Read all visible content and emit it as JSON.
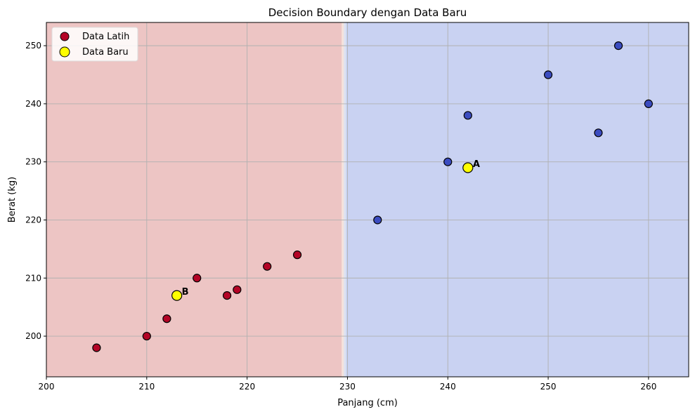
{
  "chart_data": {
    "type": "scatter",
    "title": "Decision Boundary dengan Data Baru",
    "xlabel": "Panjang (cm)",
    "ylabel": "Berat (kg)",
    "xlim": [
      200,
      264
    ],
    "ylim": [
      193,
      254
    ],
    "xticks": [
      200,
      210,
      220,
      230,
      240,
      250,
      260
    ],
    "yticks": [
      200,
      210,
      220,
      230,
      240,
      250
    ],
    "grid": true,
    "legend_position": "top-left",
    "decision_boundary_x": 229.7,
    "regions": [
      {
        "class": "red",
        "x_range": [
          200,
          229.7
        ],
        "color": "#edc5c4"
      },
      {
        "class": "blue",
        "x_range": [
          229.7,
          264
        ],
        "color": "#c9d2f2"
      }
    ],
    "series": [
      {
        "name": "Data Latih",
        "marker_edge": "#000000",
        "points": [
          {
            "x": 205,
            "y": 198,
            "color": "#b40426"
          },
          {
            "x": 210,
            "y": 200,
            "color": "#b40426"
          },
          {
            "x": 212,
            "y": 203,
            "color": "#b40426"
          },
          {
            "x": 215,
            "y": 210,
            "color": "#b40426"
          },
          {
            "x": 218,
            "y": 207,
            "color": "#b40426"
          },
          {
            "x": 219,
            "y": 208,
            "color": "#b40426"
          },
          {
            "x": 222,
            "y": 212,
            "color": "#b40426"
          },
          {
            "x": 225,
            "y": 214,
            "color": "#b40426"
          },
          {
            "x": 233,
            "y": 220,
            "color": "#3b4cc0"
          },
          {
            "x": 240,
            "y": 230,
            "color": "#3b4cc0"
          },
          {
            "x": 242,
            "y": 238,
            "color": "#3b4cc0"
          },
          {
            "x": 250,
            "y": 245,
            "color": "#3b4cc0"
          },
          {
            "x": 255,
            "y": 235,
            "color": "#3b4cc0"
          },
          {
            "x": 257,
            "y": 250,
            "color": "#3b4cc0"
          },
          {
            "x": 260,
            "y": 240,
            "color": "#3b4cc0"
          }
        ],
        "legend_color": "#b40426"
      },
      {
        "name": "Data Baru",
        "marker_edge": "#000000",
        "points": [
          {
            "x": 242,
            "y": 229,
            "color": "#ffff00",
            "label": "A"
          },
          {
            "x": 213,
            "y": 207,
            "color": "#ffff00",
            "label": "B"
          }
        ],
        "legend_color": "#ffff00"
      }
    ]
  }
}
